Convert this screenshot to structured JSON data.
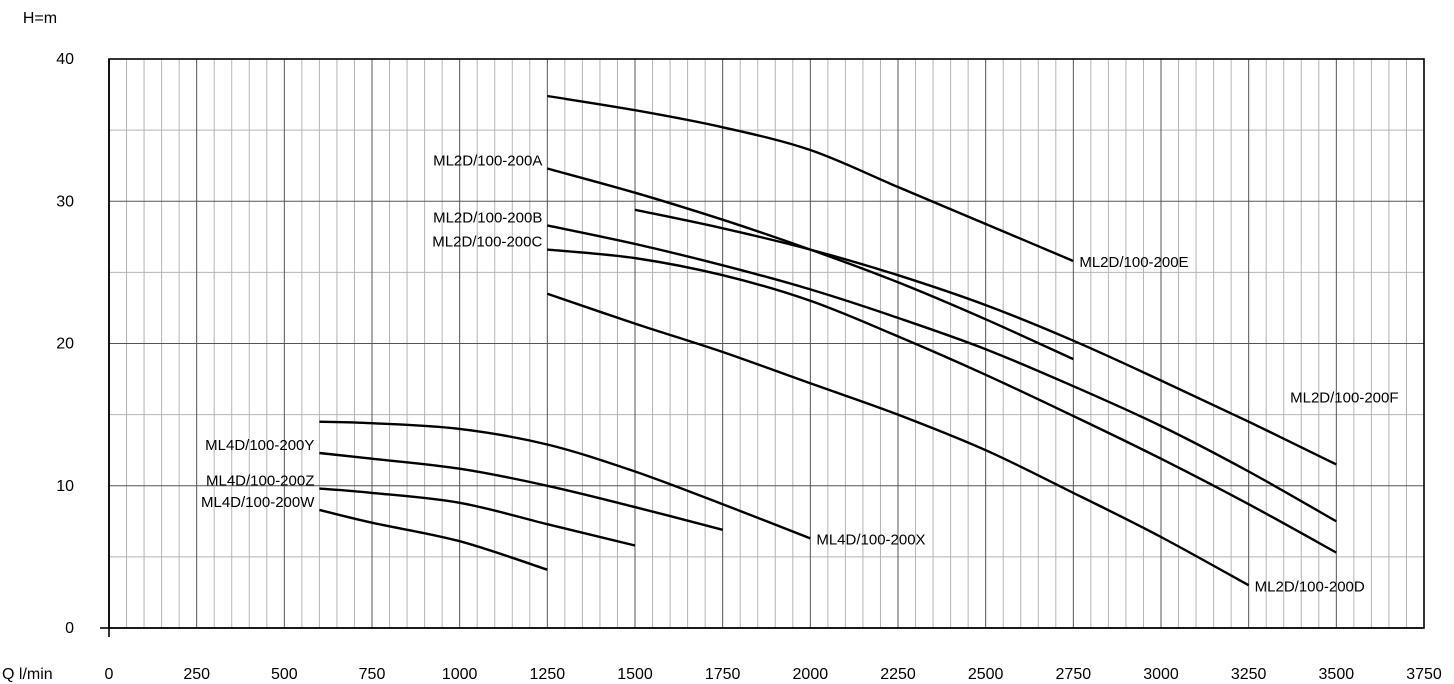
{
  "chart_data": {
    "type": "line",
    "title": "",
    "ylabel": "H=m",
    "xlabel": "Q l/min",
    "xlim": [
      0,
      3750
    ],
    "ylim": [
      0,
      40
    ],
    "x_major_ticks": [
      0,
      250,
      500,
      750,
      1000,
      1250,
      1500,
      1750,
      2000,
      2250,
      2500,
      2750,
      3000,
      3250,
      3500,
      3750
    ],
    "x_minor_step": 50,
    "y_major_ticks": [
      0,
      10,
      20,
      30,
      40
    ],
    "y_minor_step": 5,
    "grid": true,
    "colors": {
      "grid_major": "#555555",
      "grid_minor": "#b4b4b4",
      "line": "#000000"
    },
    "series": [
      {
        "name": "ML2D/100-200A",
        "label_side": "left",
        "points": [
          [
            1250,
            32.3
          ],
          [
            1500,
            30.6
          ],
          [
            1750,
            28.7
          ],
          [
            2000,
            26.6
          ],
          [
            2250,
            24.3
          ],
          [
            2500,
            21.7
          ],
          [
            2750,
            18.9
          ]
        ]
      },
      {
        "name": "ML2D/100-200B",
        "label_side": "left",
        "points": [
          [
            1250,
            28.3
          ],
          [
            1500,
            27.0
          ],
          [
            1750,
            25.5
          ],
          [
            2000,
            23.8
          ],
          [
            2250,
            21.8
          ],
          [
            2500,
            19.6
          ],
          [
            2750,
            17.0
          ],
          [
            3000,
            14.2
          ],
          [
            3250,
            11.0
          ],
          [
            3500,
            7.5
          ]
        ]
      },
      {
        "name": "ML2D/100-200C",
        "label_side": "left",
        "points": [
          [
            1250,
            26.6
          ],
          [
            1500,
            26.0
          ],
          [
            1750,
            24.8
          ],
          [
            2000,
            23.0
          ],
          [
            2250,
            20.5
          ],
          [
            2500,
            17.8
          ],
          [
            2750,
            14.9
          ],
          [
            3000,
            11.9
          ],
          [
            3250,
            8.7
          ],
          [
            3500,
            5.3
          ]
        ]
      },
      {
        "name": "ML2D/100-200D",
        "label_side": "right",
        "points": [
          [
            1250,
            23.5
          ],
          [
            1500,
            21.4
          ],
          [
            1750,
            19.4
          ],
          [
            2000,
            17.2
          ],
          [
            2250,
            15.0
          ],
          [
            2500,
            12.5
          ],
          [
            2750,
            9.5
          ],
          [
            3000,
            6.4
          ],
          [
            3250,
            3.0
          ]
        ]
      },
      {
        "name": "ML2D/100-200E",
        "label_side": "right",
        "points": [
          [
            1250,
            37.4
          ],
          [
            1500,
            36.4
          ],
          [
            1750,
            35.2
          ],
          [
            2000,
            33.6
          ],
          [
            2250,
            31.0
          ],
          [
            2500,
            28.4
          ],
          [
            2750,
            25.8
          ]
        ]
      },
      {
        "name": "ML2D/100-200F",
        "label_side": "above",
        "points": [
          [
            1500,
            29.4
          ],
          [
            1750,
            28.1
          ],
          [
            2000,
            26.6
          ],
          [
            2250,
            24.8
          ],
          [
            2500,
            22.7
          ],
          [
            2750,
            20.2
          ],
          [
            3000,
            17.4
          ],
          [
            3250,
            14.5
          ],
          [
            3500,
            11.5
          ]
        ]
      },
      {
        "name": "ML4D/100-200X",
        "label_side": "right",
        "points": [
          [
            600,
            14.5
          ],
          [
            750,
            14.4
          ],
          [
            1000,
            14.0
          ],
          [
            1250,
            12.9
          ],
          [
            1500,
            11.0
          ],
          [
            1750,
            8.7
          ],
          [
            2000,
            6.3
          ]
        ]
      },
      {
        "name": "ML4D/100-200Y",
        "label_side": "left",
        "points": [
          [
            600,
            12.3
          ],
          [
            750,
            11.9
          ],
          [
            1000,
            11.2
          ],
          [
            1250,
            10.0
          ],
          [
            1500,
            8.5
          ],
          [
            1750,
            6.9
          ]
        ]
      },
      {
        "name": "ML4D/100-200Z",
        "label_side": "left",
        "points": [
          [
            600,
            9.8
          ],
          [
            750,
            9.5
          ],
          [
            1000,
            8.8
          ],
          [
            1250,
            7.3
          ],
          [
            1500,
            5.8
          ]
        ]
      },
      {
        "name": "ML4D/100-200W",
        "label_side": "left",
        "points": [
          [
            600,
            8.3
          ],
          [
            750,
            7.4
          ],
          [
            1000,
            6.1
          ],
          [
            1250,
            4.1
          ]
        ]
      }
    ]
  }
}
